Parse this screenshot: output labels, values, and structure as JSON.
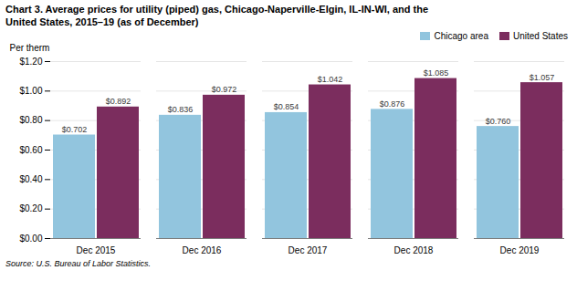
{
  "chart_data": {
    "type": "bar",
    "title": "Chart 3. Average prices for utility (piped) gas, Chicago-Naperville-Elgin, IL-IN-WI, and the\nUnited States, 2015–19 (as of December)",
    "ylabel": "Per therm",
    "source": "Source: U.S. Bureau of Labor Statistics.",
    "categories": [
      "Dec 2015",
      "Dec 2016",
      "Dec 2017",
      "Dec 2018",
      "Dec 2019"
    ],
    "series": [
      {
        "name": "Chicago area",
        "color": "#92c5de",
        "values": [
          0.702,
          0.836,
          0.854,
          0.876,
          0.76
        ],
        "value_labels": [
          "$0.702",
          "$0.836",
          "$0.854",
          "$0.876",
          "$0.760"
        ]
      },
      {
        "name": "United States",
        "color": "#7b2d5e",
        "values": [
          0.892,
          0.972,
          1.042,
          1.085,
          1.057
        ],
        "value_labels": [
          "$0.892",
          "$0.972",
          "$1.042",
          "$1.085",
          "$1.057"
        ]
      }
    ],
    "ylim": [
      0,
      1.2
    ],
    "yticks": [
      {
        "value": 0.0,
        "label": "$0.00"
      },
      {
        "value": 0.2,
        "label": "$0.20"
      },
      {
        "value": 0.4,
        "label": "$0.40"
      },
      {
        "value": 0.6,
        "label": "$0.60"
      },
      {
        "value": 0.8,
        "label": "$0.80"
      },
      {
        "value": 1.0,
        "label": "$1.00"
      },
      {
        "value": 1.2,
        "label": "$1.20"
      }
    ],
    "grid": true,
    "legend": "upper right",
    "data_labels": true
  }
}
